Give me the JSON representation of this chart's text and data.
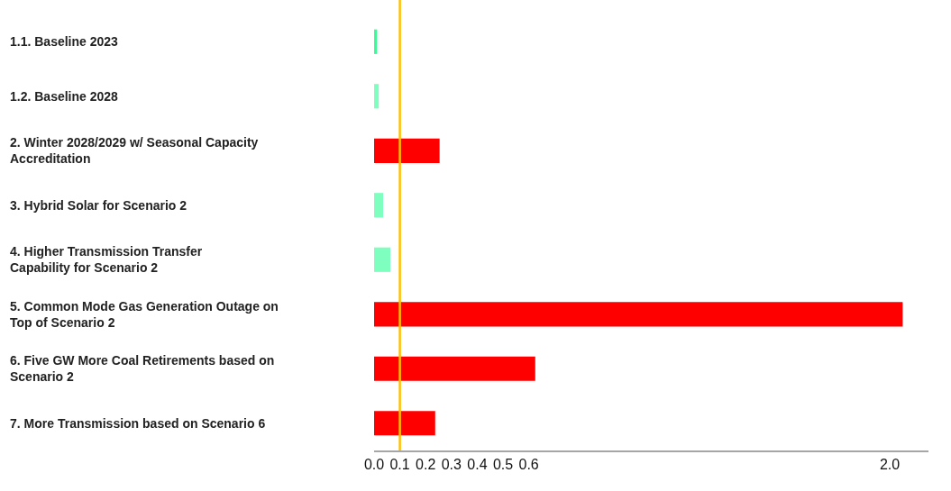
{
  "chart_data": {
    "type": "bar",
    "orientation": "horizontal",
    "categories": [
      "1.1. Baseline 2023",
      "1.2. Baseline 2028",
      "2. Winter 2028/2029 w/ Seasonal Capacity Accreditation",
      "3. Hybrid Solar for Scenario 2",
      "4. Higher Transmission Transfer Capability for Scenario 2",
      "5. Common Mode Gas Generation Outage on Top of Scenario 2",
      "6. Five GW More Coal Retirements based on Scenario 2",
      "7. More Transmission based on Scenario 6"
    ],
    "values": [
      0.012,
      0.018,
      0.254,
      0.035,
      0.063,
      2.05,
      0.625,
      0.237
    ],
    "colors": [
      "#33ff99",
      "#7fffbf",
      "#ff0000",
      "#7fffbf",
      "#7fffbf",
      "#ff0000",
      "#ff0000",
      "#ff0000"
    ],
    "xlim": [
      0,
      2.15
    ],
    "xticks": [
      {
        "value": 0,
        "label": "0.0"
      },
      0.1,
      0.2,
      0.3,
      0.4,
      0.5,
      0.6,
      {
        "value": 2,
        "label": "2.0"
      }
    ],
    "ref_lines": [
      {
        "axis": "x",
        "value": 0.1,
        "color": "#ffc000"
      }
    ]
  }
}
